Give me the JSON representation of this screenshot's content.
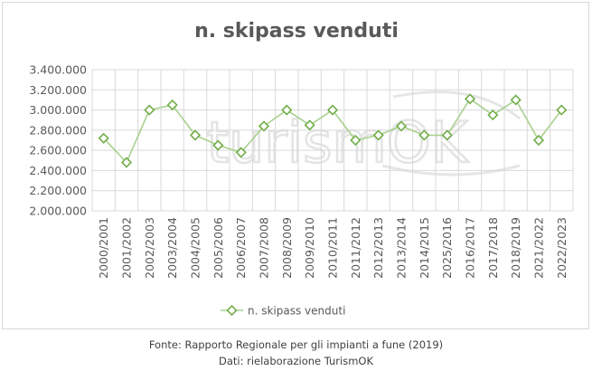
{
  "chart_data": {
    "type": "line",
    "title": "n. skipass venduti",
    "categories": [
      "2000/2001",
      "2001/2002",
      "2002/2003",
      "2003/2004",
      "2004/2005",
      "2005/2006",
      "2006/2007",
      "2007/2008",
      "2008/2009",
      "2009/2010",
      "2010/2011",
      "2011/2012",
      "2012/2013",
      "2013/2014",
      "2014/2015",
      "2025/2016",
      "2016/2017",
      "2017/2018",
      "2018/2019",
      "2021/2022",
      "2022/2023"
    ],
    "series": [
      {
        "name": "n. skipass venduti",
        "color": "#70ad47",
        "values": [
          2720000,
          2480000,
          3000000,
          3050000,
          2750000,
          2650000,
          2580000,
          2840000,
          3000000,
          2850000,
          3000000,
          2700000,
          2750000,
          2840000,
          2750000,
          2750000,
          3110000,
          2950000,
          3100000,
          2700000,
          3000000
        ]
      }
    ],
    "ylim": [
      2000000,
      3400000
    ],
    "y_ticks": [
      "2.000.000",
      "2.200.000",
      "2.400.000",
      "2.600.000",
      "2.800.000",
      "3.000.000",
      "3.200.000",
      "3.400.000"
    ],
    "xlabel": "",
    "ylabel": "",
    "grid": true,
    "legend_position": "bottom",
    "watermark": "turismOK"
  },
  "footer": {
    "source_line": "Fonte: Rapporto Regionale per gli impianti a fune (2019)",
    "data_line": "Dati: rielaborazione TurismOK"
  }
}
